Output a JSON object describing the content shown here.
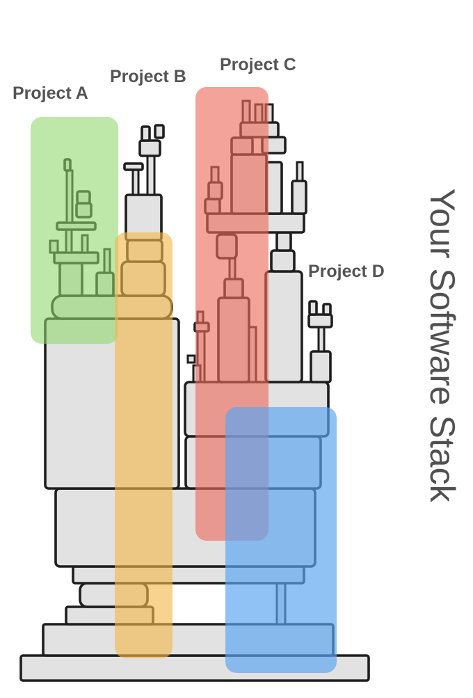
{
  "title": "Your Software Stack",
  "projects": [
    {
      "name": "Project A",
      "color": "#8ed86a"
    },
    {
      "name": "Project B",
      "color": "#f3b84b"
    },
    {
      "name": "Project C",
      "color": "#ec6b5b"
    },
    {
      "name": "Project D",
      "color": "#5ba5f1"
    }
  ],
  "colors": {
    "block_fill": "#e2e2e2",
    "outline": "#1e1e1e",
    "label": "#545454"
  }
}
